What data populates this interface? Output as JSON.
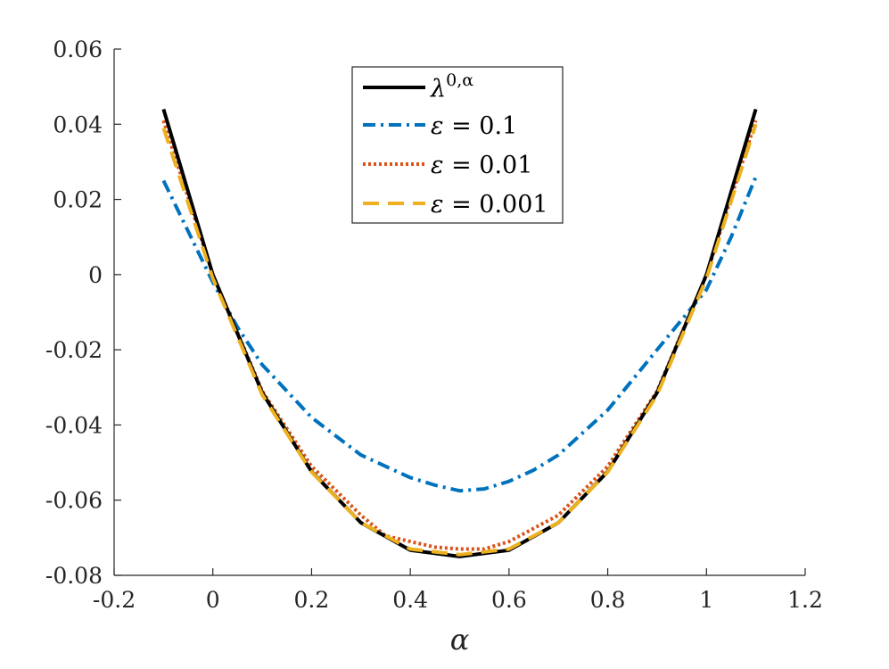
{
  "chart_data": {
    "type": "line",
    "title": "",
    "xlabel": "α",
    "ylabel": "",
    "xlim": [
      -0.2,
      1.2
    ],
    "ylim": [
      -0.08,
      0.06
    ],
    "xticks": [
      "-0.2",
      "0",
      "0.2",
      "0.4",
      "0.6",
      "0.8",
      "1",
      "1.2"
    ],
    "yticks": [
      "-0.08",
      "-0.06",
      "-0.04",
      "-0.02",
      "0",
      "0.02",
      "0.04",
      "0.06"
    ],
    "grid": false,
    "legend_position": "top-center",
    "series": [
      {
        "name": "λ^{0,α}",
        "legend_main": "λ",
        "legend_sup": "0,α",
        "color": "#000000",
        "style": "solid",
        "x": [
          -0.1,
          0.0,
          0.1,
          0.2,
          0.3,
          0.4,
          0.5,
          0.6,
          0.7,
          0.8,
          0.9,
          1.0,
          1.1
        ],
        "y": [
          0.044,
          0.0,
          -0.0314,
          -0.0524,
          -0.066,
          -0.0733,
          -0.075,
          -0.0733,
          -0.066,
          -0.0524,
          -0.0314,
          0.0,
          0.044
        ]
      },
      {
        "name": "ε = 0.1",
        "legend_main": "ε",
        "legend_rest": " = 0.1",
        "color": "#0072BD",
        "style": "dashdot",
        "x": [
          -0.1,
          0.0,
          0.05,
          0.1,
          0.15,
          0.2,
          0.25,
          0.3,
          0.35,
          0.4,
          0.45,
          0.5,
          0.55,
          0.6,
          0.65,
          0.7,
          0.75,
          0.8,
          0.85,
          0.9,
          0.95,
          1.0,
          1.05,
          1.1
        ],
        "y": [
          0.025,
          -0.002,
          -0.014,
          -0.024,
          -0.031,
          -0.038,
          -0.043,
          -0.048,
          -0.051,
          -0.054,
          -0.056,
          -0.0575,
          -0.057,
          -0.055,
          -0.052,
          -0.048,
          -0.042,
          -0.036,
          -0.028,
          -0.02,
          -0.012,
          -0.004,
          0.01,
          0.026
        ]
      },
      {
        "name": "ε = 0.01",
        "legend_main": "ε",
        "legend_rest": " = 0.01",
        "color": "#D95319",
        "style": "dotted",
        "x": [
          -0.1,
          0.0,
          0.1,
          0.2,
          0.3,
          0.35,
          0.4,
          0.45,
          0.5,
          0.55,
          0.6,
          0.7,
          0.8,
          0.9,
          1.0,
          1.1
        ],
        "y": [
          0.041,
          0.0,
          -0.031,
          -0.051,
          -0.064,
          -0.0695,
          -0.071,
          -0.0725,
          -0.073,
          -0.073,
          -0.071,
          -0.064,
          -0.051,
          -0.031,
          0.0,
          0.041
        ]
      },
      {
        "name": "ε = 0.001",
        "legend_main": "ε",
        "legend_rest": " = 0.001",
        "color": "#EDB120",
        "style": "dashed",
        "x": [
          -0.1,
          0.0,
          0.1,
          0.2,
          0.3,
          0.4,
          0.5,
          0.6,
          0.7,
          0.8,
          0.9,
          1.0,
          1.1
        ],
        "y": [
          0.039,
          -0.001,
          -0.032,
          -0.0525,
          -0.066,
          -0.073,
          -0.0745,
          -0.073,
          -0.066,
          -0.0525,
          -0.032,
          -0.001,
          0.04
        ]
      }
    ]
  }
}
